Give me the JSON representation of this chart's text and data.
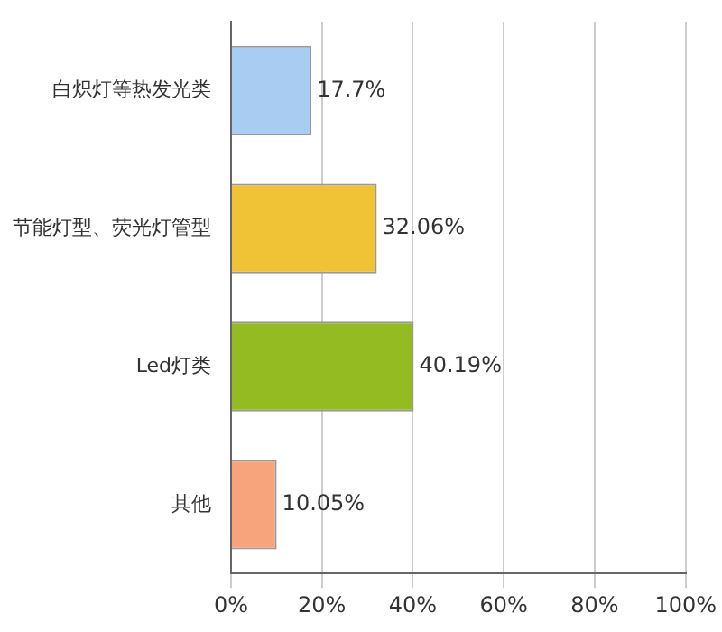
{
  "chart_data": {
    "type": "bar",
    "orientation": "horizontal",
    "categories": [
      "白炽灯等热发光类",
      "节能灯型、荧光灯管型",
      "Led灯类",
      "其他"
    ],
    "values": [
      17.7,
      32.06,
      40.19,
      10.05
    ],
    "colors": [
      "#a9cdf2",
      "#f0c236",
      "#94bc22",
      "#f7a47c"
    ],
    "value_labels": [
      "17.7%",
      "32.06%",
      "40.19%",
      "10.05%"
    ],
    "xlim": [
      0,
      100
    ],
    "xticks": [
      {
        "value": 0,
        "label": "0%"
      },
      {
        "value": 20,
        "label": "20%"
      },
      {
        "value": 40,
        "label": "40%"
      },
      {
        "value": 60,
        "label": "60%"
      },
      {
        "value": 80,
        "label": "80%"
      },
      {
        "value": 100,
        "label": "100%"
      }
    ],
    "grid": "x",
    "legend": false
  }
}
